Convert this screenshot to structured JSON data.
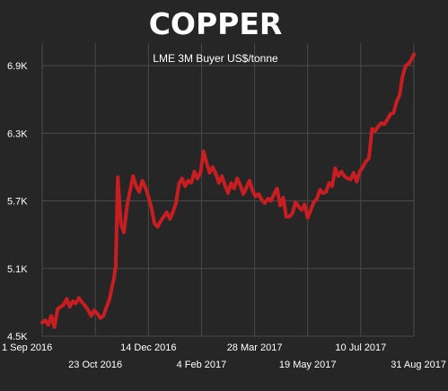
{
  "colors": {
    "background": "#262626",
    "grid": "#4a4a4a",
    "text": "#ffffff",
    "line": "#c81e22"
  },
  "chart_data": {
    "type": "line",
    "title": "COPPER",
    "subtitle": "LME 3M Buyer US$/tonne",
    "xlabel": "",
    "ylabel": "",
    "ylim": [
      4500,
      7100
    ],
    "grid": true,
    "y_ticks": [
      {
        "value": 4500,
        "label": "4.5K"
      },
      {
        "value": 5100,
        "label": "5.1K"
      },
      {
        "value": 5700,
        "label": "5.7K"
      },
      {
        "value": 6300,
        "label": "6.3K"
      },
      {
        "value": 6900,
        "label": "6.9K"
      }
    ],
    "x_ticks": [
      {
        "date": "2016-09-01",
        "label": "1 Sep 2016",
        "row": 0
      },
      {
        "date": "2016-10-23",
        "label": "23 Oct 2016",
        "row": 1
      },
      {
        "date": "2016-12-14",
        "label": "14 Dec 2016",
        "row": 0
      },
      {
        "date": "2017-02-04",
        "label": "4 Feb 2017",
        "row": 1
      },
      {
        "date": "2017-03-28",
        "label": "28 Mar 2017",
        "row": 0
      },
      {
        "date": "2017-05-19",
        "label": "19 May 2017",
        "row": 1
      },
      {
        "date": "2017-07-10",
        "label": "10 Jul 2017",
        "row": 0
      },
      {
        "date": "2017-08-31",
        "label": "31 Aug 2017",
        "row": 1
      }
    ],
    "series": [
      {
        "x": [
          "2016-09-01",
          "2016-09-04",
          "2016-09-07",
          "2016-09-10",
          "2016-09-13",
          "2016-09-16",
          "2016-09-19",
          "2016-09-22",
          "2016-09-25",
          "2016-09-28",
          "2016-10-01",
          "2016-10-04",
          "2016-10-07",
          "2016-10-10",
          "2016-10-13",
          "2016-10-16",
          "2016-10-19",
          "2016-10-22",
          "2016-10-25",
          "2016-10-28",
          "2016-10-31",
          "2016-11-03",
          "2016-11-06",
          "2016-11-08",
          "2016-11-10",
          "2016-11-12",
          "2016-11-14",
          "2016-11-17",
          "2016-11-20",
          "2016-11-23",
          "2016-11-26",
          "2016-11-29",
          "2016-12-02",
          "2016-12-05",
          "2016-12-08",
          "2016-12-11",
          "2016-12-14",
          "2016-12-17",
          "2016-12-20",
          "2016-12-23",
          "2016-12-26",
          "2016-12-29",
          "2017-01-01",
          "2017-01-04",
          "2017-01-07",
          "2017-01-10",
          "2017-01-13",
          "2017-01-16",
          "2017-01-19",
          "2017-01-22",
          "2017-01-25",
          "2017-01-28",
          "2017-01-31",
          "2017-02-03",
          "2017-02-06",
          "2017-02-09",
          "2017-02-12",
          "2017-02-15",
          "2017-02-18",
          "2017-02-21",
          "2017-02-24",
          "2017-02-27",
          "2017-03-02",
          "2017-03-05",
          "2017-03-08",
          "2017-03-11",
          "2017-03-14",
          "2017-03-17",
          "2017-03-20",
          "2017-03-23",
          "2017-03-26",
          "2017-03-29",
          "2017-04-01",
          "2017-04-04",
          "2017-04-07",
          "2017-04-10",
          "2017-04-13",
          "2017-04-16",
          "2017-04-19",
          "2017-04-22",
          "2017-04-25",
          "2017-04-28",
          "2017-05-01",
          "2017-05-04",
          "2017-05-07",
          "2017-05-10",
          "2017-05-13",
          "2017-05-16",
          "2017-05-19",
          "2017-05-22",
          "2017-05-25",
          "2017-05-28",
          "2017-05-31",
          "2017-06-03",
          "2017-06-06",
          "2017-06-09",
          "2017-06-12",
          "2017-06-15",
          "2017-06-18",
          "2017-06-21",
          "2017-06-24",
          "2017-06-27",
          "2017-06-30",
          "2017-07-03",
          "2017-07-06",
          "2017-07-09",
          "2017-07-12",
          "2017-07-15",
          "2017-07-18",
          "2017-07-21",
          "2017-07-24",
          "2017-07-27",
          "2017-07-30",
          "2017-08-02",
          "2017-08-05",
          "2017-08-08",
          "2017-08-11",
          "2017-08-14",
          "2017-08-17",
          "2017-08-20",
          "2017-08-23",
          "2017-08-26",
          "2017-08-29",
          "2017-08-31"
        ],
        "values": [
          4620,
          4640,
          4600,
          4680,
          4580,
          4740,
          4760,
          4780,
          4830,
          4760,
          4810,
          4790,
          4840,
          4800,
          4770,
          4730,
          4680,
          4730,
          4700,
          4660,
          4680,
          4760,
          4830,
          4920,
          5000,
          5120,
          5910,
          5500,
          5420,
          5650,
          5790,
          5920,
          5830,
          5780,
          5880,
          5820,
          5740,
          5640,
          5500,
          5470,
          5520,
          5560,
          5600,
          5540,
          5600,
          5680,
          5850,
          5900,
          5830,
          5880,
          5860,
          5960,
          5900,
          5950,
          6140,
          6040,
          5950,
          6000,
          5940,
          5860,
          5920,
          5840,
          5770,
          5860,
          5810,
          5900,
          5840,
          5760,
          5820,
          5880,
          5790,
          5740,
          5760,
          5710,
          5680,
          5720,
          5700,
          5760,
          5810,
          5660,
          5730,
          5560,
          5560,
          5590,
          5690,
          5650,
          5620,
          5670,
          5550,
          5620,
          5690,
          5720,
          5800,
          5770,
          5780,
          5860,
          5830,
          5990,
          5920,
          5960,
          5920,
          5900,
          5890,
          5950,
          5870,
          5960,
          6000,
          6050,
          6080,
          6340,
          6320,
          6360,
          6390,
          6380,
          6420,
          6470,
          6480,
          6580,
          6640,
          6810,
          6900,
          6920,
          6960,
          7000
        ]
      }
    ]
  }
}
